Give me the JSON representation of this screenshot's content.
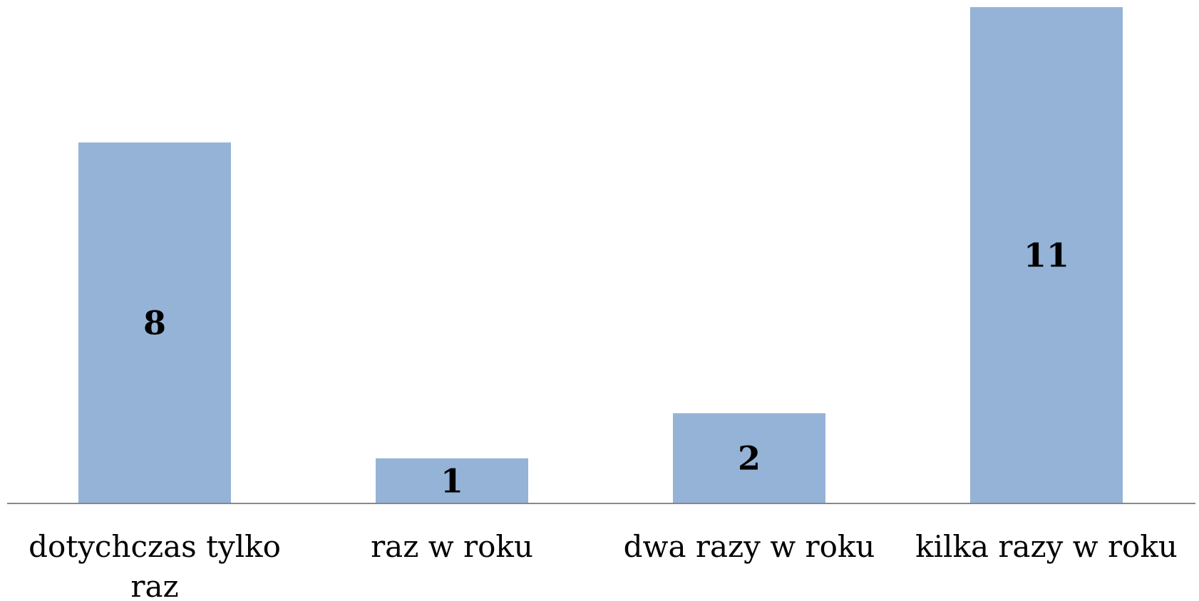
{
  "chart_data": {
    "type": "bar",
    "categories": [
      "dotychczas tylko raz",
      "raz w roku",
      "dwa razy w roku",
      "kilka razy w roku"
    ],
    "values": [
      8,
      1,
      2,
      11
    ],
    "color": "#95b3d7"
  }
}
